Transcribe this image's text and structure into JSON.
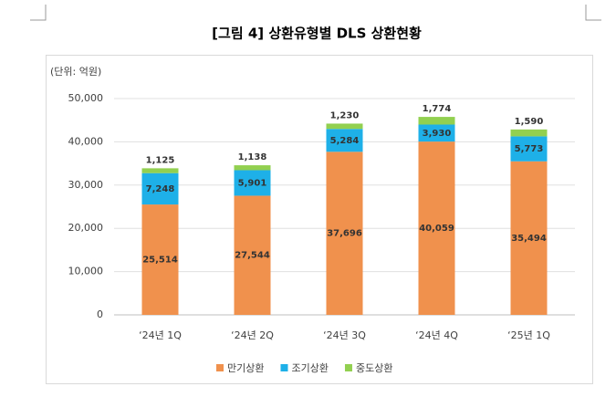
{
  "chart_data": {
    "type": "stacked_bar",
    "title": "[그림 4] 상환유형별 DLS 상환현황",
    "unit_label": "(단위: 억원)",
    "categories": [
      "‘24년 1Q",
      "‘24년 2Q",
      "‘24년 3Q",
      "‘24년 4Q",
      "‘25년 1Q"
    ],
    "series": [
      {
        "name": "만기상환",
        "color": "#f0914d",
        "values": [
          25514,
          27544,
          37696,
          40059,
          35494
        ],
        "value_labels": [
          "25,514",
          "27,544",
          "37,696",
          "40,059",
          "35,494"
        ]
      },
      {
        "name": "조기상환",
        "color": "#1eb0e8",
        "values": [
          7248,
          5901,
          5284,
          3930,
          5773
        ],
        "value_labels": [
          "7,248",
          "5,901",
          "5,284",
          "3,930",
          "5,773"
        ]
      },
      {
        "name": "중도상환",
        "color": "#92d050",
        "values": [
          1125,
          1138,
          1230,
          1774,
          1590
        ],
        "value_labels": [
          "1,125",
          "1,138",
          "1,230",
          "1,774",
          "1,590"
        ]
      }
    ],
    "ylim": [
      0,
      50000
    ],
    "yticks": [
      0,
      {
        "value": 10000,
        "label": "10,000"
      },
      {
        "value": 20000,
        "label": "20,000"
      },
      {
        "value": 30000,
        "label": "30,000"
      },
      {
        "value": 40000,
        "label": "40,000"
      },
      {
        "value": 50000,
        "label": "50,000"
      }
    ],
    "grid": true,
    "legend": "bottom"
  }
}
